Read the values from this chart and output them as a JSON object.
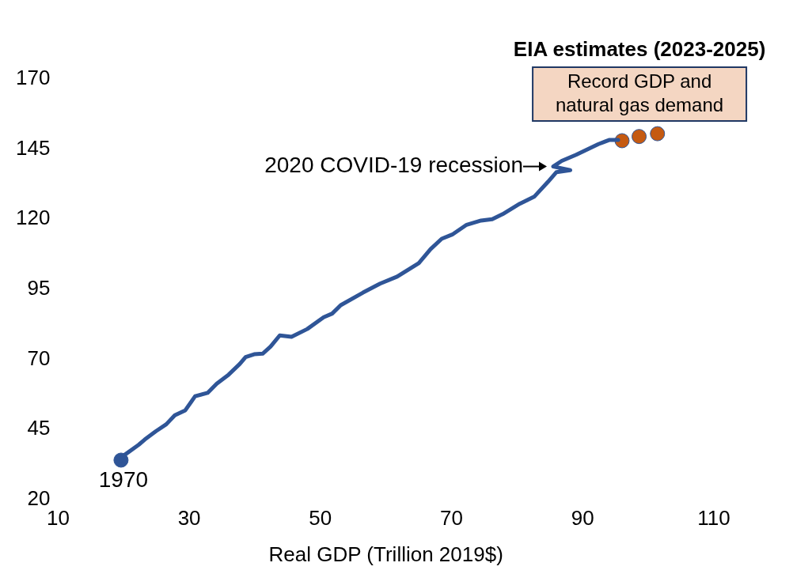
{
  "chart_data": {
    "type": "line",
    "xlabel": "Real GDP (Trillion 2019$)",
    "xlim": [
      10,
      110
    ],
    "xticks": [
      10,
      30,
      50,
      70,
      90,
      110
    ],
    "ylim": [
      20,
      170
    ],
    "yticks": [
      20,
      45,
      70,
      95,
      120,
      145,
      170
    ],
    "grid": false,
    "legend": false,
    "series": [
      {
        "type": "line",
        "marker": "none",
        "color": "#2f5597",
        "x": [
          19.6,
          20.1,
          22.3,
          23.2,
          24.9,
          26.5,
          27.8,
          29.4,
          30.9,
          32.8,
          34.2,
          36,
          37.7,
          38.6,
          39.9,
          41.2,
          42.4,
          43.8,
          45.6,
          48,
          50.5,
          51.8,
          53.1,
          56.5,
          59.1,
          61.7,
          65,
          66.8,
          68.5,
          70.1,
          72.3,
          74.5,
          76.2,
          77.8,
          80.4,
          82.6,
          84.7,
          86,
          88.1,
          85.5,
          86.8,
          89,
          92.4,
          94.1,
          95.4
        ],
        "values": [
          34,
          35.8,
          39.5,
          41.3,
          44.3,
          46.8,
          50,
          51.8,
          56.8,
          58,
          61.3,
          64.5,
          68.3,
          70.8,
          71.8,
          72,
          74.5,
          78.5,
          78,
          80.8,
          85,
          86.3,
          89.3,
          93.8,
          97,
          99.5,
          104.3,
          109.3,
          113,
          114.5,
          118,
          119.5,
          120,
          121.8,
          125.5,
          128,
          133.3,
          136.8,
          137.5,
          138.8,
          140.8,
          143,
          146.8,
          148.3,
          148.3
        ]
      },
      {
        "type": "scatter",
        "marker": "circle",
        "color": "#2f5597",
        "x": [
          19.6
        ],
        "values": [
          34
        ]
      },
      {
        "type": "scatter",
        "marker": "circle",
        "color": "#c55a11",
        "name": "EIA estimates (2023-2025)",
        "x": [
          96,
          98.6,
          101.4
        ],
        "values": [
          148,
          149.5,
          150.5
        ]
      }
    ],
    "annotations": [
      {
        "text": "1970",
        "x": 19.6,
        "y": 34
      },
      {
        "text": "2020 COVID-19 recession",
        "x": 85.5,
        "y": 138.8
      },
      "Record GDP and natural gas demand"
    ]
  }
}
